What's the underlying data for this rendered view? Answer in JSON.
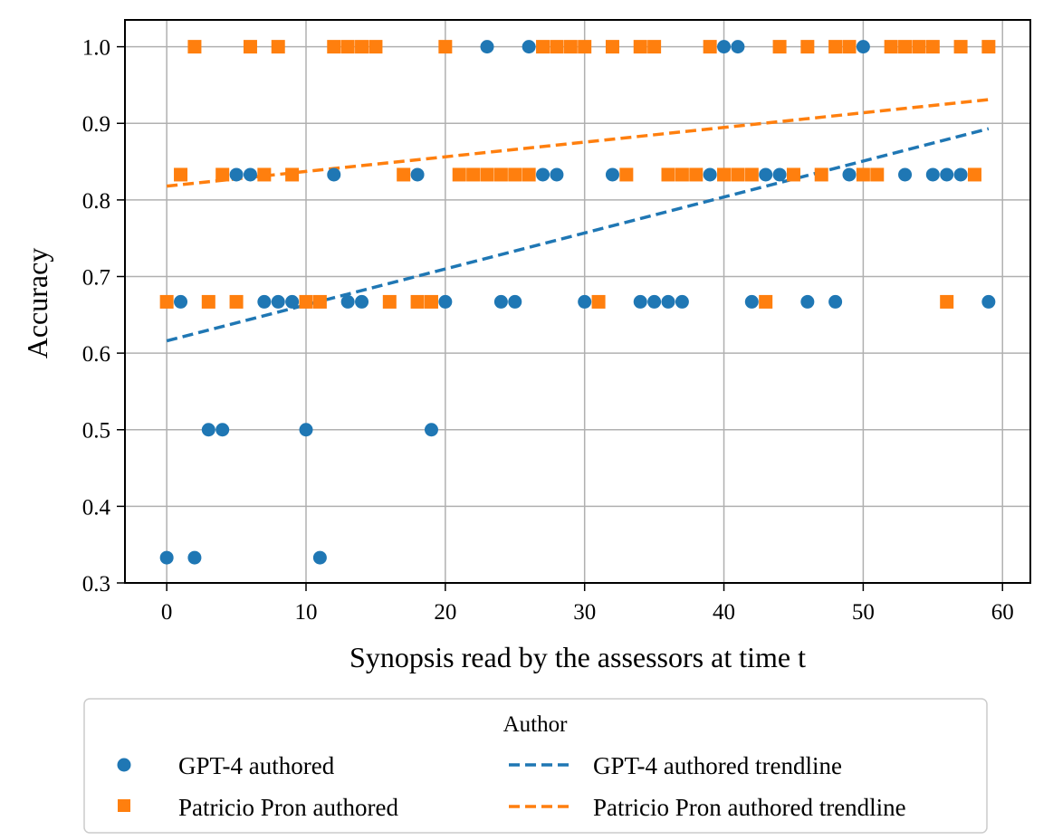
{
  "chart_data": {
    "type": "scatter",
    "title": "",
    "xlabel": "Synopsis read by the assessors at time t",
    "ylabel": "Accuracy",
    "xlim": [
      -3,
      62
    ],
    "ylim": [
      0.3,
      1.035
    ],
    "xticks": [
      0,
      10,
      20,
      30,
      40,
      50,
      60
    ],
    "yticks": [
      0.3,
      0.4,
      0.5,
      0.6,
      0.7,
      0.8,
      0.9,
      1.0
    ],
    "xtick_labels": [
      "0",
      "10",
      "20",
      "30",
      "40",
      "50",
      "60"
    ],
    "ytick_labels": [
      "0.3",
      "0.4",
      "0.5",
      "0.6",
      "0.7",
      "0.8",
      "0.9",
      "1.0"
    ],
    "grid": true,
    "legend": {
      "title": "Author",
      "position": "below",
      "entries": [
        "GPT-4 authored",
        "Patricio Pron authored",
        "GPT-4 authored trendline",
        "Patricio Pron authored trendline"
      ]
    },
    "series": [
      {
        "name": "GPT-4 authored",
        "kind": "scatter",
        "marker": "circle",
        "color": "#1f77b4",
        "points": [
          [
            0,
            0.333
          ],
          [
            1,
            0.667
          ],
          [
            2,
            0.333
          ],
          [
            3,
            0.5
          ],
          [
            4,
            0.5
          ],
          [
            5,
            0.833
          ],
          [
            6,
            0.833
          ],
          [
            7,
            0.667
          ],
          [
            8,
            0.667
          ],
          [
            9,
            0.667
          ],
          [
            10,
            0.5
          ],
          [
            11,
            0.333
          ],
          [
            12,
            0.833
          ],
          [
            13,
            0.667
          ],
          [
            14,
            0.667
          ],
          [
            18,
            0.833
          ],
          [
            19,
            0.5
          ],
          [
            20,
            0.667
          ],
          [
            23,
            1.0
          ],
          [
            24,
            0.667
          ],
          [
            25,
            0.667
          ],
          [
            26,
            1.0
          ],
          [
            27,
            0.833
          ],
          [
            28,
            0.833
          ],
          [
            30,
            0.667
          ],
          [
            32,
            0.833
          ],
          [
            34,
            0.667
          ],
          [
            35,
            0.667
          ],
          [
            36,
            0.667
          ],
          [
            37,
            0.667
          ],
          [
            39,
            0.833
          ],
          [
            40,
            1.0
          ],
          [
            41,
            1.0
          ],
          [
            42,
            0.667
          ],
          [
            43,
            0.833
          ],
          [
            44,
            0.833
          ],
          [
            46,
            0.667
          ],
          [
            48,
            0.667
          ],
          [
            49,
            0.833
          ],
          [
            50,
            1.0
          ],
          [
            53,
            0.833
          ],
          [
            55,
            0.833
          ],
          [
            56,
            0.833
          ],
          [
            57,
            0.833
          ],
          [
            59,
            0.667
          ]
        ]
      },
      {
        "name": "Patricio Pron authored",
        "kind": "scatter",
        "marker": "square",
        "color": "#ff7f0e",
        "points": [
          [
            0,
            0.667
          ],
          [
            1,
            0.833
          ],
          [
            2,
            1.0
          ],
          [
            3,
            0.667
          ],
          [
            4,
            0.833
          ],
          [
            5,
            0.667
          ],
          [
            6,
            1.0
          ],
          [
            7,
            0.833
          ],
          [
            8,
            1.0
          ],
          [
            9,
            0.833
          ],
          [
            10,
            0.667
          ],
          [
            11,
            0.667
          ],
          [
            12,
            1.0
          ],
          [
            13,
            1.0
          ],
          [
            14,
            1.0
          ],
          [
            15,
            1.0
          ],
          [
            16,
            0.667
          ],
          [
            17,
            0.833
          ],
          [
            18,
            0.667
          ],
          [
            19,
            0.667
          ],
          [
            20,
            1.0
          ],
          [
            21,
            0.833
          ],
          [
            22,
            0.833
          ],
          [
            23,
            0.833
          ],
          [
            24,
            0.833
          ],
          [
            25,
            0.833
          ],
          [
            26,
            0.833
          ],
          [
            27,
            1.0
          ],
          [
            28,
            1.0
          ],
          [
            29,
            1.0
          ],
          [
            30,
            1.0
          ],
          [
            31,
            0.667
          ],
          [
            32,
            1.0
          ],
          [
            33,
            0.833
          ],
          [
            34,
            1.0
          ],
          [
            35,
            1.0
          ],
          [
            36,
            0.833
          ],
          [
            37,
            0.833
          ],
          [
            38,
            0.833
          ],
          [
            39,
            1.0
          ],
          [
            40,
            0.833
          ],
          [
            41,
            0.833
          ],
          [
            42,
            0.833
          ],
          [
            43,
            0.667
          ],
          [
            44,
            1.0
          ],
          [
            45,
            0.833
          ],
          [
            46,
            1.0
          ],
          [
            47,
            0.833
          ],
          [
            48,
            1.0
          ],
          [
            49,
            1.0
          ],
          [
            50,
            0.833
          ],
          [
            51,
            0.833
          ],
          [
            52,
            1.0
          ],
          [
            53,
            1.0
          ],
          [
            54,
            1.0
          ],
          [
            55,
            1.0
          ],
          [
            56,
            0.667
          ],
          [
            57,
            1.0
          ],
          [
            58,
            0.833
          ],
          [
            59,
            1.0
          ]
        ]
      },
      {
        "name": "GPT-4 authored trendline",
        "kind": "line",
        "style": "dashed",
        "color": "#1f77b4",
        "points": [
          [
            0,
            0.616
          ],
          [
            59,
            0.893
          ]
        ]
      },
      {
        "name": "Patricio Pron authored trendline",
        "kind": "line",
        "style": "dashed",
        "color": "#ff7f0e",
        "points": [
          [
            0,
            0.818
          ],
          [
            59,
            0.931
          ]
        ]
      }
    ]
  }
}
